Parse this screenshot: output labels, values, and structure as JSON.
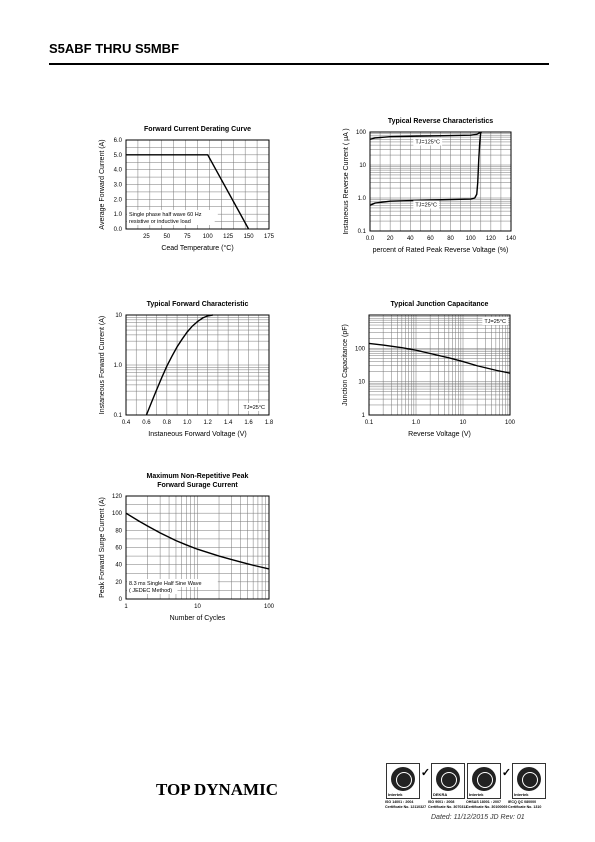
{
  "header": {
    "title": "S5ABF THRU S5MBF"
  },
  "footer": {
    "brand": "TOP DYNAMIC",
    "dated": "Dated: 11/12/2015 JD Rev: 01",
    "certs": [
      {
        "label": "Intertek",
        "caption1": "ISO 14001 : 2004",
        "caption2": "Certificate No. 12110327"
      },
      {
        "label": "DEKRA",
        "caption1": "ISO 9001 : 2008",
        "caption2": "Certificate No. 3070312"
      },
      {
        "label": "Intertek",
        "caption1": "OHSAS 18001 : 2007",
        "caption2": "Certificate No. 30100069"
      },
      {
        "label": "Intertek",
        "caption1": "IECQ QC 080000",
        "caption2": "Certificate No. 1310"
      }
    ]
  },
  "chart_data": [
    {
      "id": "derating",
      "type": "line",
      "title": "Forward Current Derating Curve",
      "xlabel": "Cead Temperature (°C)",
      "ylabel": "Average Forward Current (A)",
      "xlim": [
        0,
        175
      ],
      "ylim": [
        0,
        6
      ],
      "xticks": [
        "25",
        "50",
        "75",
        "100",
        "125",
        "150",
        "175"
      ],
      "yticks": [
        "0.0",
        "1.0",
        "2.0",
        "3.0",
        "4.0",
        "5.0",
        "6.0"
      ],
      "annotation": [
        "Single phase half wave 60 Hz",
        "resistive or inductive load"
      ],
      "series": [
        {
          "x": [
            0,
            100,
            150
          ],
          "y": [
            5.0,
            5.0,
            0.0
          ]
        }
      ]
    },
    {
      "id": "reverse",
      "type": "line",
      "title": "Typical Reverse Characteristics",
      "xlabel": "percent of Rated  Peak Reverse Voltage (%)",
      "ylabel": "Instaneous Reverse Current ( μA )",
      "xlim": [
        0,
        140
      ],
      "ylim": [
        0.1,
        100
      ],
      "yscale": "log",
      "xticks": [
        "0.0",
        "20",
        "40",
        "60",
        "80",
        "100",
        "120",
        "140"
      ],
      "yticks": [
        "0.1",
        "1.0",
        "10",
        "100"
      ],
      "annotations": [
        "TJ=125°C",
        "TJ=25°C"
      ],
      "series": [
        {
          "x": [
            0,
            5,
            20,
            60,
            100,
            106,
            109,
            111
          ],
          "y": [
            60,
            66,
            72,
            76,
            80,
            85,
            95,
            100
          ]
        },
        {
          "x": [
            0,
            5,
            20,
            60,
            100,
            104,
            106,
            107,
            108,
            109,
            110
          ],
          "y": [
            0.6,
            0.7,
            0.8,
            0.87,
            0.93,
            1.0,
            1.3,
            3,
            15,
            50,
            100
          ]
        }
      ]
    },
    {
      "id": "forward",
      "type": "line",
      "title": "Typical Forward Characteristic",
      "xlabel": "Instaneous Forward Voltage (V)",
      "ylabel": "Instaneous Forward Current (A)",
      "xlim": [
        0.4,
        1.8
      ],
      "ylim": [
        0.1,
        10
      ],
      "yscale": "log",
      "xticks": [
        "0.4",
        "0.6",
        "0.8",
        "1.0",
        "1.2",
        "1.4",
        "1.6",
        "1.8"
      ],
      "yticks": [
        "0.1",
        "1.0",
        "10"
      ],
      "annotation": "TJ=25°C",
      "series": [
        {
          "x": [
            0.6,
            0.65,
            0.7,
            0.75,
            0.8,
            0.85,
            0.9,
            0.95,
            1.0,
            1.05,
            1.1,
            1.15,
            1.2,
            1.25
          ],
          "y": [
            0.1,
            0.18,
            0.32,
            0.56,
            0.95,
            1.5,
            2.3,
            3.3,
            4.6,
            6.0,
            7.4,
            8.7,
            9.6,
            10
          ]
        }
      ]
    },
    {
      "id": "capacitance",
      "type": "line",
      "title": "Typical Junction Capacitance",
      "xlabel": "Reverse  Voltage (V)",
      "ylabel": "Junction Capacitance (pF)",
      "xlim": [
        0.1,
        100
      ],
      "ylim": [
        1,
        1000
      ],
      "xscale": "log",
      "yscale": "log",
      "xticks": [
        "0.1",
        "1.0",
        "10",
        "100"
      ],
      "yticks": [
        "1",
        "10",
        "100"
      ],
      "annotation": "TJ=25°C",
      "series": [
        {
          "x": [
            0.1,
            0.2,
            0.5,
            1,
            2,
            5,
            10,
            20,
            50,
            100
          ],
          "y": [
            140,
            125,
            105,
            88,
            70,
            52,
            40,
            30,
            22,
            18
          ]
        }
      ]
    },
    {
      "id": "surge",
      "type": "line",
      "title": [
        "Maximum Non-Repetitive Peak",
        "Forward Surage Current"
      ],
      "xlabel": "Number of Cycles",
      "ylabel": "Peak Forward Surge Current (A)",
      "xlim": [
        1,
        100
      ],
      "ylim": [
        0,
        120
      ],
      "xscale": "log",
      "xticks": [
        "1",
        "10",
        "100"
      ],
      "yticks": [
        "0",
        "20",
        "40",
        "60",
        "80",
        "100",
        "120"
      ],
      "annotation": [
        "8.3 ms Single Half Sine Wave",
        "( JEDEC Method)"
      ],
      "series": [
        {
          "x": [
            1,
            1.5,
            2,
            3,
            5,
            7,
            10,
            20,
            30,
            50,
            70,
            100
          ],
          "y": [
            100,
            91,
            85,
            77,
            68,
            63,
            58,
            50,
            46,
            41,
            38,
            35
          ]
        }
      ]
    }
  ]
}
